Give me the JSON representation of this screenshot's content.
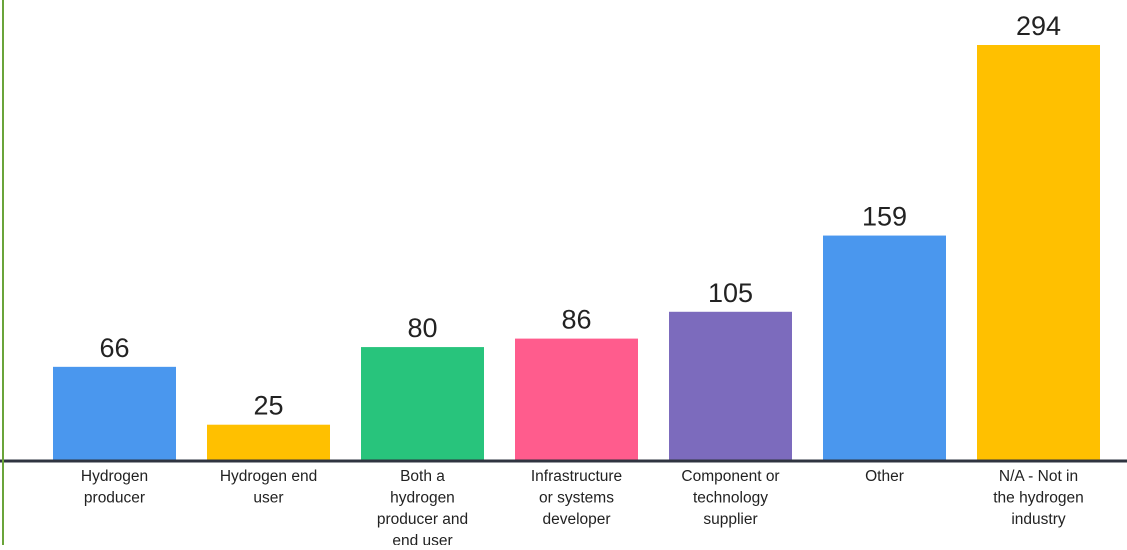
{
  "colors": {
    "left_rule": "#6aa43a",
    "baseline": "#2f3440",
    "value_text": "#222222",
    "category_text": "#222222"
  },
  "chart_data": {
    "type": "bar",
    "categories": [
      [
        "Hydrogen",
        "producer"
      ],
      [
        "Hydrogen end",
        "user"
      ],
      [
        "Both a",
        "hydrogen",
        "producer and",
        "end user"
      ],
      [
        "Infrastructure",
        "or systems",
        "developer"
      ],
      [
        "Component or",
        "technology",
        "supplier"
      ],
      [
        "Other"
      ],
      [
        "N/A - Not in",
        "the hydrogen",
        "industry"
      ]
    ],
    "values": [
      66,
      25,
      80,
      86,
      105,
      159,
      294
    ],
    "value_labels": [
      "66",
      "25",
      "80",
      "86",
      "105",
      "159",
      "294"
    ],
    "bar_colors": [
      "#4a97ee",
      "#ffc000",
      "#28c47c",
      "#ff5c8d",
      "#7c6bbd",
      "#4a97ee",
      "#ffc000"
    ],
    "title": "",
    "xlabel": "",
    "ylabel": "",
    "ylim": [
      0,
      294
    ],
    "grid": false,
    "legend": "none"
  }
}
